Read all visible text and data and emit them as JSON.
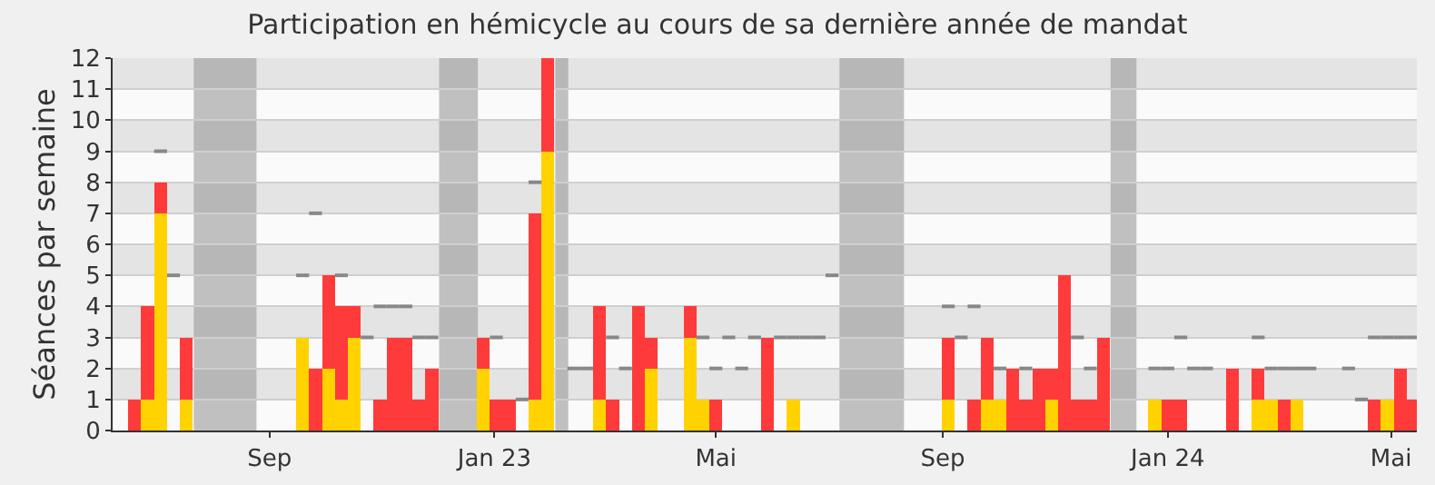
{
  "chart_data": {
    "type": "bar",
    "title": "Participation en hémicycle au cours de sa dernière année de mandat",
    "ylabel": "Séances par semaine",
    "stacked": true,
    "grid": "y",
    "x": [
      "2022-06-20",
      "2022-06-27",
      "2022-07-04",
      "2022-07-11",
      "2022-07-18",
      "2022-09-19",
      "2022-09-26",
      "2022-10-03",
      "2022-10-10",
      "2022-10-17",
      "2022-10-24",
      "2022-10-31",
      "2022-11-07",
      "2022-11-14",
      "2022-11-21",
      "2022-11-28",
      "2022-12-26",
      "2023-01-02",
      "2023-01-09",
      "2023-01-16",
      "2023-01-23",
      "2023-01-30",
      "2023-02-13",
      "2023-02-20",
      "2023-02-27",
      "2023-03-06",
      "2023-03-13",
      "2023-03-20",
      "2023-03-27",
      "2023-04-17",
      "2023-04-24",
      "2023-05-01",
      "2023-05-08",
      "2023-05-15",
      "2023-05-22",
      "2023-05-29",
      "2023-06-05",
      "2023-06-12",
      "2023-06-19",
      "2023-06-26",
      "2023-07-03",
      "2023-09-04",
      "2023-09-11",
      "2023-09-18",
      "2023-09-25",
      "2023-10-02",
      "2023-10-09",
      "2023-10-16",
      "2023-10-23",
      "2023-10-30",
      "2023-11-06",
      "2023-11-13",
      "2023-11-20",
      "2023-11-27",
      "2023-12-25",
      "2024-01-01",
      "2024-01-08",
      "2024-01-15",
      "2024-01-22",
      "2024-02-05",
      "2024-02-19",
      "2024-02-26",
      "2024-03-04",
      "2024-03-11",
      "2024-03-18",
      "2024-04-08",
      "2024-04-15",
      "2024-04-22",
      "2024-04-29",
      "2024-05-06",
      "2024-05-13"
    ],
    "series": [
      {
        "color": "#ffd200",
        "values": [
          null,
          1,
          7,
          null,
          1,
          3,
          null,
          2,
          1,
          3,
          null,
          null,
          null,
          null,
          null,
          null,
          2,
          null,
          null,
          null,
          1,
          9,
          null,
          null,
          1,
          null,
          null,
          null,
          2,
          3,
          1,
          null,
          null,
          null,
          null,
          null,
          null,
          1,
          null,
          null,
          null,
          1,
          null,
          null,
          1,
          1,
          null,
          null,
          null,
          1,
          null,
          null,
          null,
          null,
          1,
          null,
          null,
          null,
          null,
          null,
          1,
          1,
          null,
          1,
          null,
          null,
          null,
          null,
          1,
          null,
          null
        ]
      },
      {
        "color": "#ff3a3a",
        "values": [
          1,
          3,
          1,
          null,
          2,
          null,
          2,
          3,
          3,
          1,
          null,
          1,
          3,
          3,
          1,
          2,
          1,
          1,
          1,
          null,
          6,
          3,
          null,
          null,
          3,
          1,
          null,
          4,
          1,
          1,
          null,
          1,
          null,
          null,
          null,
          3,
          null,
          null,
          null,
          null,
          null,
          2,
          null,
          1,
          2,
          null,
          2,
          1,
          2,
          1,
          5,
          1,
          1,
          3,
          null,
          1,
          1,
          null,
          null,
          2,
          1,
          null,
          1,
          null,
          null,
          null,
          null,
          1,
          null,
          2,
          1
        ]
      },
      {
        "type": "step",
        "color": "#888888",
        "values": [
          null,
          null,
          9,
          5,
          null,
          5,
          7,
          null,
          5,
          null,
          3,
          4,
          4,
          4,
          3,
          3,
          null,
          3,
          null,
          1,
          8,
          null,
          2,
          2,
          null,
          3,
          2,
          null,
          null,
          null,
          3,
          2,
          3,
          2,
          3,
          null,
          3,
          3,
          3,
          3,
          5,
          4,
          3,
          4,
          null,
          2,
          null,
          2,
          null,
          null,
          null,
          3,
          2,
          null,
          2,
          2,
          3,
          2,
          2,
          null,
          3,
          2,
          2,
          2,
          2,
          2,
          1,
          3,
          3,
          3,
          3
        ]
      }
    ],
    "xlim": [
      "2022-06-08",
      "2024-05-15"
    ],
    "xticks": [
      {
        "value": "2022-09-01",
        "label": "Sep"
      },
      {
        "value": "2023-01-01",
        "label": "Jan 23"
      },
      {
        "value": "2023-05-01",
        "label": "Mai"
      },
      {
        "value": "2023-09-01",
        "label": "Sep"
      },
      {
        "value": "2024-01-01",
        "label": "Jan 24"
      },
      {
        "value": "2024-05-01",
        "label": "Mai"
      }
    ],
    "ylim": [
      0,
      12
    ],
    "yticks": [
      0,
      1,
      2,
      3,
      4,
      5,
      6,
      7,
      8,
      9,
      10,
      11,
      12
    ],
    "bands": [
      {
        "axis": "x",
        "from": "2022-07-22",
        "to": "2022-08-25",
        "color": "#999999"
      },
      {
        "axis": "x",
        "from": "2022-12-02",
        "to": "2022-12-23",
        "color": "#999999"
      },
      {
        "axis": "x",
        "from": "2023-02-03",
        "to": "2023-02-10",
        "color": "#999999"
      },
      {
        "axis": "x",
        "from": "2023-07-07",
        "to": "2023-08-11",
        "color": "#999999"
      },
      {
        "axis": "x",
        "from": "2023-12-01",
        "to": "2023-12-15",
        "color": "#999999"
      }
    ]
  }
}
